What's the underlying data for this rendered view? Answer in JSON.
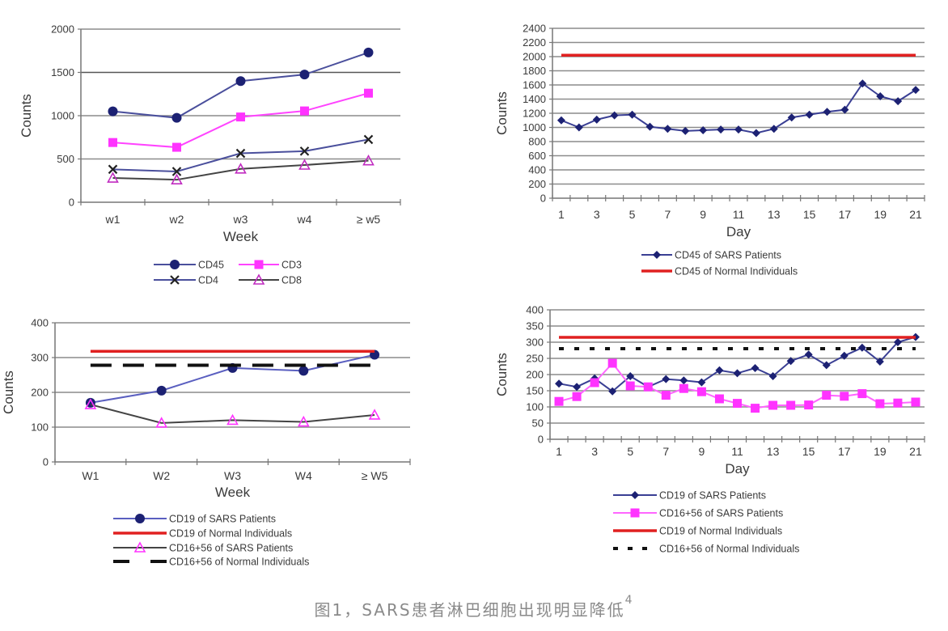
{
  "caption": {
    "text": "图1，SARS患者淋巴细胞出现明显降低",
    "ref": "4"
  },
  "chart_data": [
    {
      "type": "line",
      "title": "",
      "xlabel": "Week",
      "ylabel": "Counts",
      "categories": [
        "w1",
        "w2",
        "w3",
        "w4",
        "≥ w5"
      ],
      "ylim": [
        0,
        2000
      ],
      "yticks": [
        "0",
        "500",
        "1000",
        "1500",
        "2000"
      ],
      "grid": true,
      "legend": "bottom",
      "series": [
        {
          "name": "CD45",
          "values": [
            1050,
            975,
            1400,
            1475,
            1730
          ],
          "color": "#4a4f9c",
          "marker": "circle",
          "marker_color": "#1c2173"
        },
        {
          "name": "CD3",
          "values": [
            690,
            635,
            985,
            1055,
            1260
          ],
          "color": "#ff44ff",
          "marker": "square",
          "marker_color": "#ff33ff"
        },
        {
          "name": "CD4",
          "values": [
            380,
            355,
            565,
            590,
            725
          ],
          "color": "#4a4f9c",
          "marker": "x",
          "marker_color": "#222222"
        },
        {
          "name": "CD8",
          "values": [
            280,
            260,
            385,
            430,
            480
          ],
          "color": "#444444",
          "marker": "triangle",
          "marker_color": "#c02cc0"
        }
      ]
    },
    {
      "type": "line",
      "title": "",
      "xlabel": "Day",
      "ylabel": "Counts",
      "x": [
        1,
        2,
        3,
        4,
        5,
        6,
        7,
        8,
        9,
        10,
        11,
        12,
        13,
        14,
        15,
        16,
        17,
        18,
        19,
        20,
        21
      ],
      "xtick_labels": [
        "1",
        "3",
        "5",
        "7",
        "9",
        "11",
        "13",
        "15",
        "17",
        "19",
        "21"
      ],
      "ylim": [
        0,
        2400
      ],
      "yticks": [
        "0",
        "200",
        "400",
        "600",
        "800",
        "1000",
        "1200",
        "1400",
        "1600",
        "1800",
        "2000",
        "2200",
        "2400"
      ],
      "grid": true,
      "legend": "bottom",
      "series": [
        {
          "name": "CD45 of SARS Patients",
          "values": [
            1100,
            1000,
            1110,
            1170,
            1180,
            1010,
            980,
            950,
            960,
            970,
            970,
            920,
            980,
            1140,
            1180,
            1220,
            1250,
            1620,
            1440,
            1370,
            1530
          ],
          "color": "#3a3f94",
          "marker": "diamond",
          "marker_color": "#1c2173"
        },
        {
          "name": "CD45 of Normal Individuals",
          "reference": 2020,
          "color": "#e02020",
          "style": "solid"
        }
      ]
    },
    {
      "type": "line",
      "title": "",
      "xlabel": "Week",
      "ylabel": "Counts",
      "categories": [
        "W1",
        "W2",
        "W3",
        "W4",
        "≥ W5"
      ],
      "ylim": [
        0,
        400
      ],
      "yticks": [
        "0",
        "100",
        "200",
        "300",
        "400"
      ],
      "grid": true,
      "legend": "bottom",
      "series": [
        {
          "name": "CD19 of SARS Patients",
          "values": [
            170,
            205,
            270,
            262,
            308
          ],
          "color": "#5a5fc0",
          "marker": "circle",
          "marker_color": "#1c2173"
        },
        {
          "name": "CD19 of Normal Individuals",
          "reference": 318,
          "color": "#e02020",
          "style": "solid"
        },
        {
          "name": "CD16+56 of SARS Patients",
          "values": [
            165,
            112,
            120,
            115,
            135
          ],
          "color": "#444444",
          "marker": "triangle",
          "marker_color": "#ff33ff"
        },
        {
          "name": "CD16+56 of Normal Individuals",
          "reference": 278,
          "color": "#111111",
          "style": "long-dash"
        }
      ]
    },
    {
      "type": "line",
      "title": "",
      "xlabel": "Day",
      "ylabel": "Counts",
      "x": [
        1,
        2,
        3,
        4,
        5,
        6,
        7,
        8,
        9,
        10,
        11,
        12,
        13,
        14,
        15,
        16,
        17,
        18,
        19,
        20,
        21
      ],
      "xtick_labels": [
        "1",
        "3",
        "5",
        "7",
        "9",
        "11",
        "13",
        "15",
        "17",
        "19",
        "21"
      ],
      "ylim": [
        0,
        400
      ],
      "yticks": [
        "0",
        "50",
        "100",
        "150",
        "200",
        "250",
        "300",
        "350",
        "400"
      ],
      "grid": true,
      "legend": "bottom",
      "series": [
        {
          "name": "CD19 of SARS Patients",
          "values": [
            172,
            162,
            188,
            148,
            195,
            162,
            186,
            182,
            176,
            213,
            204,
            220,
            195,
            242,
            262,
            229,
            258,
            283,
            240,
            300,
            316
          ],
          "color": "#3a3f94",
          "marker": "diamond",
          "marker_color": "#1c2173"
        },
        {
          "name": "CD16+56 of SARS Patients",
          "values": [
            117,
            132,
            175,
            235,
            165,
            162,
            136,
            157,
            147,
            125,
            111,
            96,
            105,
            105,
            106,
            136,
            133,
            141,
            110,
            112,
            115
          ],
          "color": "#ff66ff",
          "marker": "square",
          "marker_color": "#ff33ff"
        },
        {
          "name": "CD19 of Normal Individuals",
          "reference": 315,
          "color": "#e02020",
          "style": "solid"
        },
        {
          "name": "CD16+56 of Normal Individuals",
          "reference": 280,
          "color": "#111111",
          "style": "short-dash"
        }
      ]
    }
  ]
}
